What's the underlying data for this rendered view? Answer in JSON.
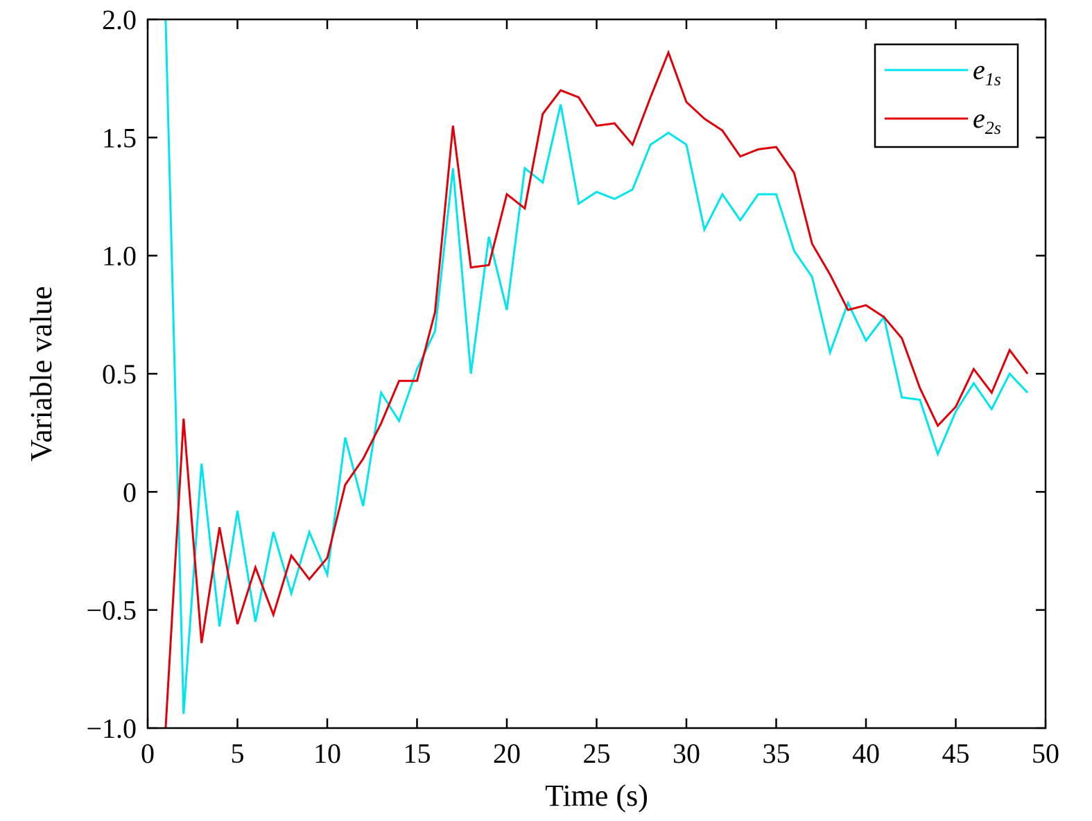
{
  "chart_data": {
    "type": "line",
    "title": "",
    "xlabel": "Time (s)",
    "ylabel": "Variable value",
    "xlim": [
      0,
      50
    ],
    "ylim": [
      -1.0,
      2.0
    ],
    "x_ticks": [
      0,
      5,
      10,
      15,
      20,
      25,
      30,
      35,
      40,
      45,
      50
    ],
    "x_tick_labels": [
      "0",
      "5",
      "10",
      "15",
      "20",
      "25",
      "30",
      "35",
      "40",
      "45",
      "50"
    ],
    "y_ticks": [
      -1.0,
      -0.5,
      0,
      0.5,
      1.0,
      1.5,
      2.0
    ],
    "y_tick_labels": [
      "−1.0",
      "−0.5",
      "0",
      "0.5",
      "1.0",
      "1.5",
      "2.0"
    ],
    "grid": false,
    "legend_position": "top-right",
    "x": [
      1,
      2,
      3,
      4,
      5,
      6,
      7,
      8,
      9,
      10,
      11,
      12,
      13,
      14,
      15,
      16,
      17,
      18,
      19,
      20,
      21,
      22,
      23,
      24,
      25,
      26,
      27,
      28,
      29,
      30,
      31,
      32,
      33,
      34,
      35,
      36,
      37,
      38,
      39,
      40,
      41,
      42,
      43,
      44,
      45,
      46,
      47,
      48,
      49
    ],
    "series": [
      {
        "name": "e1s",
        "legend_main": "e",
        "legend_sub": "1s",
        "color": "#00e5ee",
        "values": [
          2.0,
          -0.94,
          0.12,
          -0.57,
          -0.08,
          -0.55,
          -0.17,
          -0.43,
          -0.17,
          -0.35,
          0.23,
          -0.06,
          0.42,
          0.3,
          0.52,
          0.68,
          1.37,
          0.5,
          1.08,
          0.77,
          1.37,
          1.31,
          1.64,
          1.22,
          1.27,
          1.24,
          1.28,
          1.47,
          1.52,
          1.47,
          1.11,
          1.26,
          1.15,
          1.26,
          1.26,
          1.02,
          0.91,
          0.59,
          0.8,
          0.64,
          0.74,
          0.4,
          0.39,
          0.16,
          0.34,
          0.46,
          0.35,
          0.5,
          0.42
        ]
      },
      {
        "name": "e2s",
        "legend_main": "e",
        "legend_sub": "2s",
        "color": "#e0000a",
        "values": [
          -1.0,
          0.31,
          -0.64,
          -0.15,
          -0.56,
          -0.32,
          -0.52,
          -0.27,
          -0.37,
          -0.28,
          0.03,
          0.14,
          0.29,
          0.47,
          0.47,
          0.76,
          1.55,
          0.95,
          0.96,
          1.26,
          1.2,
          1.6,
          1.7,
          1.67,
          1.55,
          1.56,
          1.47,
          1.67,
          1.86,
          1.65,
          1.58,
          1.53,
          1.42,
          1.45,
          1.46,
          1.35,
          1.05,
          0.92,
          0.77,
          0.79,
          0.74,
          0.65,
          0.44,
          0.28,
          0.36,
          0.52,
          0.42,
          0.6,
          0.5
        ]
      }
    ]
  }
}
